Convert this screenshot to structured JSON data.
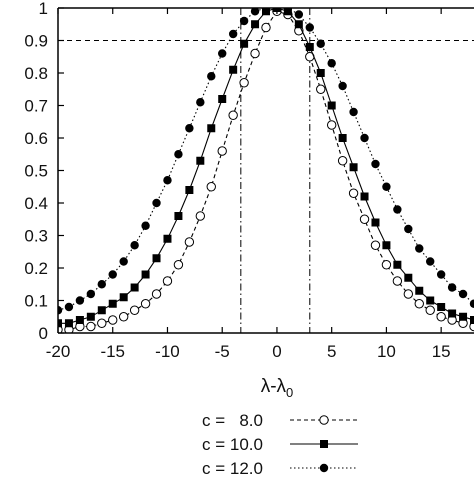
{
  "chart_data": {
    "type": "line",
    "title": "",
    "xlabel": "λ-λ",
    "xlabel_subscript": "0",
    "ylabel": "",
    "xlim": [
      -20,
      18
    ],
    "ylim": [
      0,
      1
    ],
    "x_ticks": [
      -20,
      -15,
      -10,
      -5,
      0,
      5,
      10,
      15
    ],
    "x_tick_labels": [
      "-20",
      "-15",
      "-10",
      "-5",
      "0",
      "5",
      "10",
      "15"
    ],
    "y_ticks": [
      0,
      0.1,
      0.2,
      0.3,
      0.4,
      0.5,
      0.6,
      0.7,
      0.8,
      0.9,
      1
    ],
    "y_tick_labels": [
      "0",
      "0.1",
      "0.2",
      "0.3",
      "0.4",
      "0.5",
      "0.6",
      "0.7",
      "0.8",
      "0.9",
      "1"
    ],
    "grid": false,
    "legend_position": "bottom-center",
    "reference_lines": {
      "horizontal_y": 0.9,
      "vertical_x": [
        -3.3,
        3.0
      ]
    },
    "x": [
      -20,
      -19,
      -18,
      -17,
      -16,
      -15,
      -14,
      -13,
      -12,
      -11,
      -10,
      -9,
      -8,
      -7,
      -6,
      -5,
      -4,
      -3,
      -2,
      -1,
      0,
      1,
      2,
      3,
      4,
      5,
      6,
      7,
      8,
      9,
      10,
      11,
      12,
      13,
      14,
      15,
      16,
      17,
      18
    ],
    "series": [
      {
        "name": "c =   8.0",
        "marker": "open-circle",
        "line_style": "dashed",
        "values": [
          0.01,
          0.01,
          0.02,
          0.02,
          0.03,
          0.04,
          0.05,
          0.07,
          0.09,
          0.12,
          0.16,
          0.21,
          0.28,
          0.36,
          0.45,
          0.56,
          0.67,
          0.77,
          0.86,
          0.94,
          0.99,
          0.98,
          0.93,
          0.85,
          0.75,
          0.64,
          0.53,
          0.43,
          0.35,
          0.27,
          0.21,
          0.16,
          0.12,
          0.09,
          0.07,
          0.05,
          0.04,
          0.03,
          0.02
        ]
      },
      {
        "name": "c = 10.0",
        "marker": "filled-square",
        "line_style": "solid",
        "values": [
          0.03,
          0.03,
          0.04,
          0.05,
          0.07,
          0.09,
          0.11,
          0.14,
          0.18,
          0.23,
          0.29,
          0.36,
          0.44,
          0.53,
          0.63,
          0.72,
          0.81,
          0.89,
          0.95,
          0.99,
          1.0,
          0.99,
          0.95,
          0.88,
          0.8,
          0.7,
          0.6,
          0.51,
          0.42,
          0.34,
          0.27,
          0.21,
          0.17,
          0.13,
          0.1,
          0.08,
          0.06,
          0.05,
          0.04
        ]
      },
      {
        "name": "c = 12.0",
        "marker": "filled-circle",
        "line_style": "dotted",
        "values": [
          0.07,
          0.08,
          0.1,
          0.12,
          0.15,
          0.18,
          0.22,
          0.27,
          0.33,
          0.4,
          0.47,
          0.55,
          0.63,
          0.71,
          0.79,
          0.86,
          0.92,
          0.96,
          0.99,
          1.0,
          1.0,
          1.0,
          0.98,
          0.94,
          0.89,
          0.83,
          0.76,
          0.68,
          0.6,
          0.52,
          0.45,
          0.38,
          0.32,
          0.26,
          0.22,
          0.18,
          0.14,
          0.12,
          0.09
        ]
      }
    ]
  }
}
